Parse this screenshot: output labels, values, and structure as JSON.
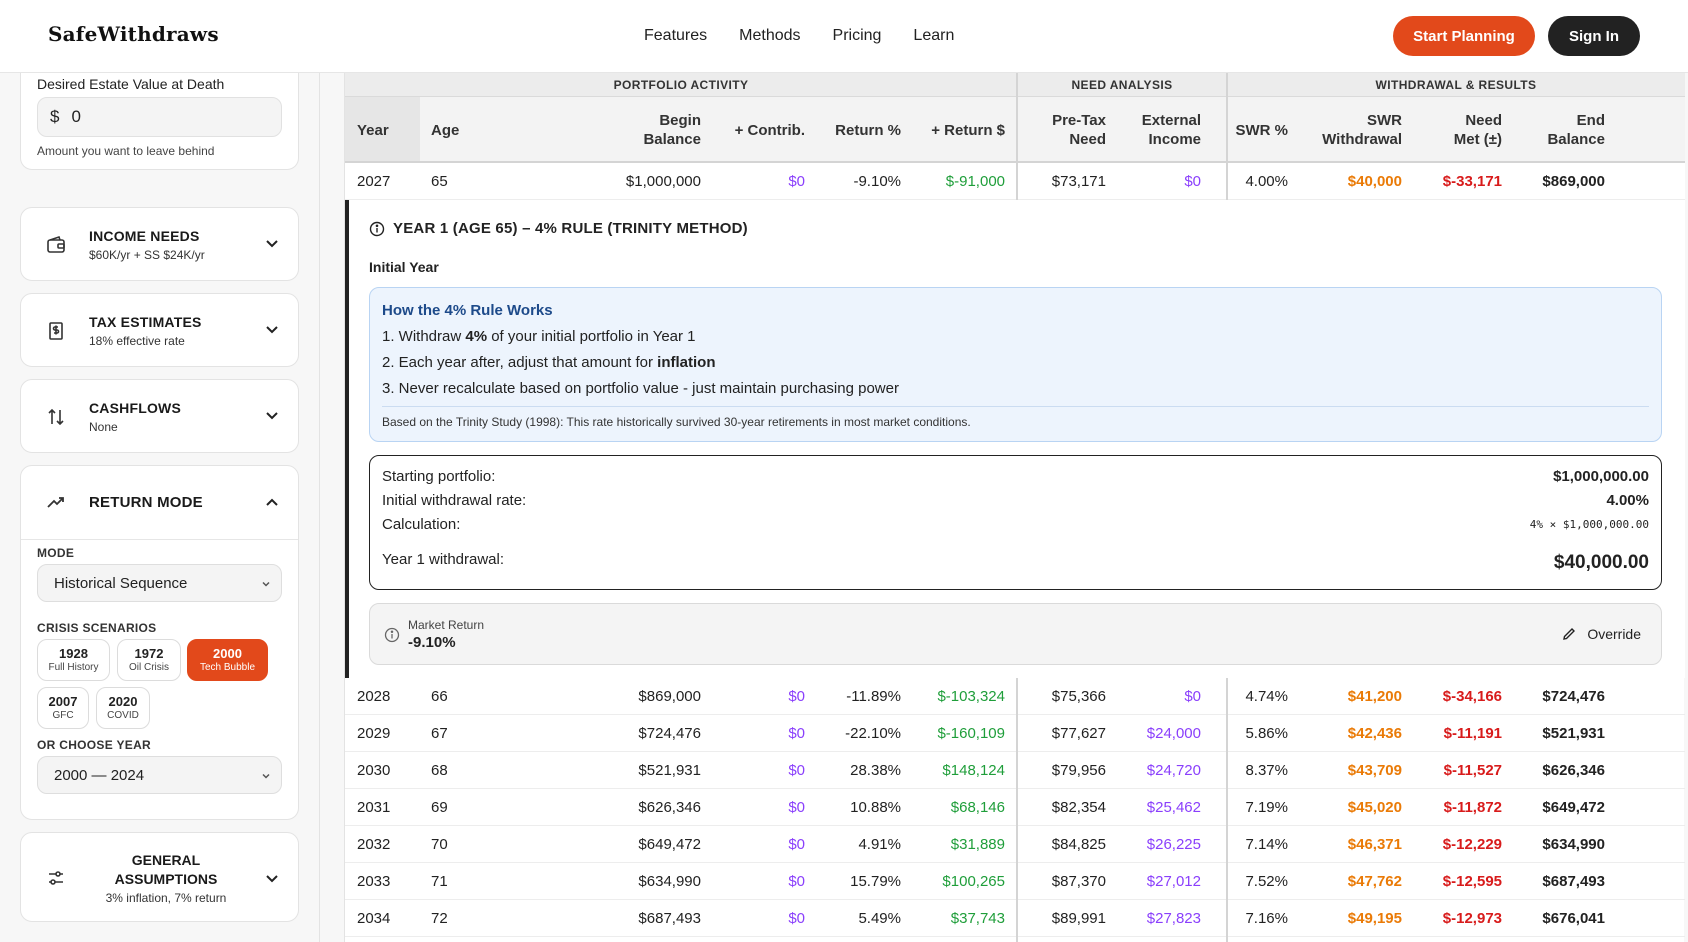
{
  "header": {
    "brand": "SafeWithdraws",
    "nav": [
      "Features",
      "Methods",
      "Pricing",
      "Learn"
    ],
    "start_button": "Start Planning",
    "signin_button": "Sign In"
  },
  "sidebar": {
    "estate": {
      "label": "Desired Estate Value at Death",
      "currency": "$",
      "value": "0",
      "hint": "Amount you want to leave behind"
    },
    "sections": [
      {
        "title": "INCOME NEEDS",
        "subtitle": "$60K/yr + SS $24K/yr",
        "icon": "wallet-icon"
      },
      {
        "title": "TAX ESTIMATES",
        "subtitle": "18% effective rate",
        "icon": "receipt-dollar-icon"
      },
      {
        "title": "CASHFLOWS",
        "subtitle": "None",
        "icon": "arrows-up-down-icon"
      }
    ],
    "return_mode": {
      "title": "RETURN MODE",
      "mode_label": "MODE",
      "mode_value": "Historical Sequence",
      "crisis_label": "CRISIS SCENARIOS",
      "scenarios": [
        {
          "year": "1928",
          "label": "Full History",
          "active": false
        },
        {
          "year": "1972",
          "label": "Oil Crisis",
          "active": false
        },
        {
          "year": "2000",
          "label": "Tech Bubble",
          "active": true
        },
        {
          "year": "2007",
          "label": "GFC",
          "active": false
        },
        {
          "year": "2020",
          "label": "COVID",
          "active": false
        }
      ],
      "choose_label": "OR CHOOSE YEAR",
      "choose_value": "2000 — 2024"
    },
    "general": {
      "title_line1": "GENERAL",
      "title_line2": "ASSUMPTIONS",
      "subtitle": "3% inflation, 7% return"
    }
  },
  "table": {
    "groups": [
      "PORTFOLIO ACTIVITY",
      "NEED ANALYSIS",
      "WITHDRAWAL & RESULTS"
    ],
    "columns": [
      {
        "l1": "Year",
        "l2": ""
      },
      {
        "l1": "Age",
        "l2": ""
      },
      {
        "l1": "Begin",
        "l2": "Balance"
      },
      {
        "l1": "+ Contrib.",
        "l2": ""
      },
      {
        "l1": "Return %",
        "l2": ""
      },
      {
        "l1": "+ Return $",
        "l2": ""
      },
      {
        "l1": "Pre-Tax",
        "l2": "Need"
      },
      {
        "l1": "External",
        "l2": "Income"
      },
      {
        "l1": "SWR %",
        "l2": ""
      },
      {
        "l1": "SWR",
        "l2": "Withdrawal"
      },
      {
        "l1": "Need",
        "l2": "Met (±)"
      },
      {
        "l1": "End",
        "l2": "Balance"
      }
    ],
    "first_row": [
      "2027",
      "65",
      "$1,000,000",
      "$0",
      "-9.10%",
      "$-91,000",
      "$73,171",
      "$0",
      "4.00%",
      "$40,000",
      "$-33,171",
      "$869,000"
    ],
    "rows": [
      [
        "2028",
        "66",
        "$869,000",
        "$0",
        "-11.89%",
        "$-103,324",
        "$75,366",
        "$0",
        "4.74%",
        "$41,200",
        "$-34,166",
        "$724,476"
      ],
      [
        "2029",
        "67",
        "$724,476",
        "$0",
        "-22.10%",
        "$-160,109",
        "$77,627",
        "$24,000",
        "5.86%",
        "$42,436",
        "$-11,191",
        "$521,931"
      ],
      [
        "2030",
        "68",
        "$521,931",
        "$0",
        "28.38%",
        "$148,124",
        "$79,956",
        "$24,720",
        "8.37%",
        "$43,709",
        "$-11,527",
        "$626,346"
      ],
      [
        "2031",
        "69",
        "$626,346",
        "$0",
        "10.88%",
        "$68,146",
        "$82,354",
        "$25,462",
        "7.19%",
        "$45,020",
        "$-11,872",
        "$649,472"
      ],
      [
        "2032",
        "70",
        "$649,472",
        "$0",
        "4.91%",
        "$31,889",
        "$84,825",
        "$26,225",
        "7.14%",
        "$46,371",
        "$-12,229",
        "$634,990"
      ],
      [
        "2033",
        "71",
        "$634,990",
        "$0",
        "15.79%",
        "$100,265",
        "$87,370",
        "$27,012",
        "7.52%",
        "$47,762",
        "$-12,595",
        "$687,493"
      ],
      [
        "2034",
        "72",
        "$687,493",
        "$0",
        "5.49%",
        "$37,743",
        "$89,991",
        "$27,823",
        "7.16%",
        "$49,195",
        "$-12,973",
        "$676,041"
      ]
    ]
  },
  "detail": {
    "title": "YEAR 1 (AGE 65) – 4% RULE (TRINITY METHOD)",
    "subtitle": "Initial Year",
    "info_title": "How the 4% Rule Works",
    "line1_pre": "1. Withdraw ",
    "line1_bold": "4%",
    "line1_post": " of your initial portfolio in Year 1",
    "line2_pre": "2. Each year after, adjust that amount for ",
    "line2_bold": "inflation",
    "line3": "3. Never recalculate based on portfolio value - just maintain purchasing power",
    "note": "Based on the Trinity Study (1998): This rate historically survived 30-year retirements in most market conditions.",
    "calc": {
      "start_label": "Starting portfolio:",
      "start_value": "$1,000,000.00",
      "rate_label": "Initial withdrawal rate:",
      "rate_value": "4.00%",
      "calc_label": "Calculation:",
      "calc_value": "4% × $1,000,000.00",
      "withdraw_label": "Year 1 withdrawal:",
      "withdraw_value": "$40,000.00"
    },
    "market_label": "Market Return",
    "market_value": "-9.10%",
    "override": "Override"
  },
  "colors": {
    "accent": "#e2491b",
    "purple": "#8a3ffc",
    "green": "#1f9e3a",
    "orange": "#ea7a06",
    "red": "#d81b1b"
  }
}
